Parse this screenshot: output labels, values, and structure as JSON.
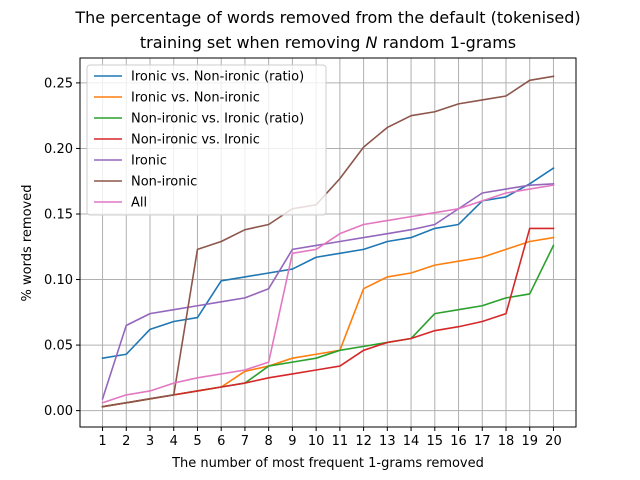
{
  "chart_data": {
    "type": "line",
    "title_line1": "The percentage of words removed from the default (tokenised)",
    "title_line2_prefix": "training set when removing ",
    "title_line2_var": "N",
    "title_line2_suffix": " random 1-grams",
    "xlabel": "The number of most frequent 1-grams removed",
    "ylabel": "% words removed",
    "x": [
      1,
      2,
      3,
      4,
      5,
      6,
      7,
      8,
      9,
      10,
      11,
      12,
      13,
      14,
      15,
      16,
      17,
      18,
      19,
      20
    ],
    "xlim": [
      0.05,
      20.95
    ],
    "ylim": [
      -0.0125,
      0.269
    ],
    "y_ticks": [
      0.0,
      0.05,
      0.1,
      0.15,
      0.2,
      0.25
    ],
    "y_tick_labels": [
      "0.00",
      "0.05",
      "0.10",
      "0.15",
      "0.20",
      "0.25"
    ],
    "grid": true,
    "legend_position": "upper-left",
    "series": [
      {
        "name": "Ironic vs. Non-ironic (ratio)",
        "color": "#1f77b4",
        "values": [
          0.04,
          0.043,
          0.062,
          0.068,
          0.071,
          0.099,
          0.102,
          0.105,
          0.108,
          0.117,
          0.12,
          0.123,
          0.129,
          0.132,
          0.139,
          0.142,
          0.16,
          0.163,
          0.173,
          0.185
        ]
      },
      {
        "name": "Ironic vs. Non-ironic",
        "color": "#ff7f0e",
        "values": [
          0.003,
          0.006,
          0.009,
          0.012,
          0.015,
          0.018,
          0.03,
          0.034,
          0.04,
          0.043,
          0.046,
          0.093,
          0.102,
          0.105,
          0.111,
          0.114,
          0.117,
          0.123,
          0.129,
          0.132
        ]
      },
      {
        "name": "Non-ironic vs. Ironic (ratio)",
        "color": "#2ca02c",
        "values": [
          0.003,
          0.006,
          0.009,
          0.012,
          0.015,
          0.018,
          0.021,
          0.034,
          0.037,
          0.04,
          0.046,
          0.049,
          0.052,
          0.055,
          0.074,
          0.077,
          0.08,
          0.086,
          0.089,
          0.126
        ]
      },
      {
        "name": "Non-ironic vs. Ironic",
        "color": "#d62728",
        "values": [
          0.003,
          0.006,
          0.009,
          0.012,
          0.015,
          0.018,
          0.021,
          0.025,
          0.028,
          0.031,
          0.034,
          0.046,
          0.052,
          0.055,
          0.061,
          0.064,
          0.068,
          0.074,
          0.139,
          0.139
        ]
      },
      {
        "name": "Ironic",
        "color": "#9467bd",
        "values": [
          0.009,
          0.065,
          0.074,
          0.077,
          0.08,
          0.083,
          0.086,
          0.093,
          0.123,
          0.126,
          0.129,
          0.132,
          0.135,
          0.138,
          0.142,
          0.154,
          0.166,
          0.169,
          0.172,
          0.173
        ]
      },
      {
        "name": "Non-ironic",
        "color": "#8c564b",
        "values": [
          0.003,
          0.006,
          0.009,
          0.012,
          0.123,
          0.129,
          0.138,
          0.142,
          0.154,
          0.157,
          0.177,
          0.201,
          0.216,
          0.225,
          0.228,
          0.234,
          0.237,
          0.24,
          0.252,
          0.255
        ]
      },
      {
        "name": "All",
        "color": "#e377c2",
        "values": [
          0.006,
          0.012,
          0.015,
          0.021,
          0.025,
          0.028,
          0.031,
          0.037,
          0.12,
          0.123,
          0.135,
          0.142,
          0.145,
          0.148,
          0.151,
          0.154,
          0.16,
          0.166,
          0.169,
          0.172
        ]
      }
    ]
  }
}
